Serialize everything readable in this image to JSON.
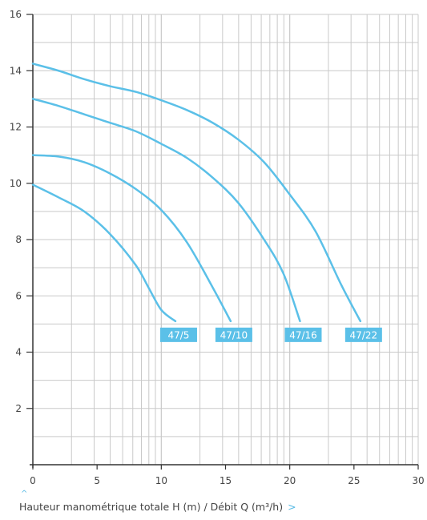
{
  "caption": {
    "text": "Hauteur manométrique totale H (m) / Débit Q (m³/h)",
    "up_arrow": "^",
    "chevron": ">"
  },
  "chart_data": {
    "type": "line",
    "title": "",
    "xlabel": "Débit Q (m³/h)",
    "ylabel": "Hauteur manométrique totale H (m)",
    "xlim": [
      0,
      30
    ],
    "ylim": [
      0,
      16
    ],
    "x_ticks": [
      0,
      5,
      10,
      15,
      20,
      25,
      30
    ],
    "y_ticks": [
      2,
      4,
      6,
      8,
      10,
      12,
      14,
      16
    ],
    "grid": true,
    "line_color": "#5bc0e8",
    "label_bg_color": "#5bc0e8",
    "series": [
      {
        "name": "47/5",
        "x": [
          0,
          2,
          4,
          6,
          8,
          9,
          10,
          11.1
        ],
        "y": [
          9.95,
          9.5,
          9.0,
          8.2,
          7.1,
          6.3,
          5.5,
          5.1
        ]
      },
      {
        "name": "47/10",
        "x": [
          0,
          2,
          4,
          6,
          8,
          10,
          12,
          14,
          15.4
        ],
        "y": [
          11.0,
          10.95,
          10.75,
          10.35,
          9.8,
          9.05,
          7.9,
          6.3,
          5.1
        ]
      },
      {
        "name": "47/16",
        "x": [
          0,
          2,
          4,
          6,
          8,
          10,
          12,
          14,
          16,
          18,
          19.5,
          20.8
        ],
        "y": [
          13.0,
          12.75,
          12.45,
          12.15,
          11.85,
          11.4,
          10.9,
          10.2,
          9.3,
          8.0,
          6.8,
          5.1
        ]
      },
      {
        "name": "47/22",
        "x": [
          0,
          2,
          4,
          6,
          8,
          10,
          12,
          14,
          16,
          18,
          20,
          22,
          24,
          25.5
        ],
        "y": [
          14.25,
          14.0,
          13.7,
          13.45,
          13.25,
          12.95,
          12.6,
          12.15,
          11.55,
          10.75,
          9.6,
          8.3,
          6.4,
          5.1
        ]
      }
    ]
  }
}
